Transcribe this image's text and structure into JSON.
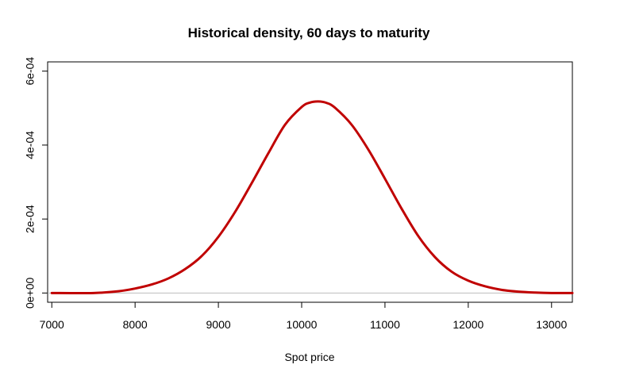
{
  "chart_data": {
    "type": "line",
    "title": "Historical density, 60 days to maturity",
    "xlabel": "Spot price",
    "ylabel": "",
    "xlim": [
      6950,
      13250
    ],
    "ylim": [
      -2.5e-05,
      0.000625
    ],
    "x_ticks": [
      7000,
      8000,
      9000,
      10000,
      11000,
      12000,
      13000
    ],
    "x_tick_labels": [
      "7000",
      "8000",
      "9000",
      "10000",
      "11000",
      "12000",
      "13000"
    ],
    "y_ticks": [
      0,
      0.0002,
      0.0004,
      0.0006
    ],
    "y_tick_labels": [
      "0e+00",
      "2e-04",
      "4e-04",
      "6e-04"
    ],
    "reference_line": {
      "y": 0,
      "color": "#bdbdbd"
    },
    "grid": false,
    "legend": "none",
    "series": [
      {
        "color": "#c00000",
        "x": [
          7000,
          7500,
          7800,
          8000,
          8200,
          8400,
          8600,
          8800,
          9000,
          9200,
          9400,
          9600,
          9800,
          10000,
          10100,
          10200,
          10300,
          10400,
          10600,
          10800,
          11000,
          11200,
          11400,
          11600,
          11800,
          12000,
          12200,
          12400,
          12600,
          12800,
          13000,
          13250
        ],
        "y": [
          0.0,
          0.0,
          4.7e-06,
          1.21e-05,
          2.3e-05,
          3.95e-05,
          6.45e-05,
          0.0001,
          0.000152,
          0.000219,
          0.000297,
          0.000378,
          0.000455,
          0.000503,
          0.000515,
          0.000518,
          0.000514,
          0.000501,
          0.000455,
          0.000388,
          0.000309,
          0.000228,
          0.000154,
          9.72e-05,
          5.77e-05,
          3.34e-05,
          1.82e-05,
          8.6e-06,
          3.6e-06,
          1.2e-06,
          0.0,
          0.0
        ]
      }
    ]
  }
}
